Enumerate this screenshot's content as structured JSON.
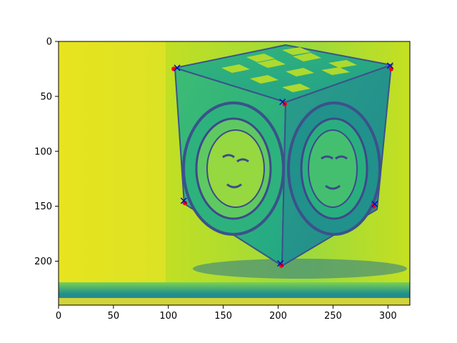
{
  "chart_data": {
    "type": "scatter",
    "title": "",
    "xlabel": "",
    "ylabel": "",
    "xlim": [
      0,
      320
    ],
    "ylim": [
      240,
      0
    ],
    "y_axis_inverted": true,
    "grid": false,
    "legend": "none",
    "x_ticks": [
      0,
      50,
      100,
      150,
      200,
      250,
      300
    ],
    "y_ticks": [
      0,
      50,
      100,
      150,
      200
    ],
    "background": {
      "kind": "grayscale image shown with viridis colormap",
      "subject": "photograph of a metal cube with sun-face reliefs and a checkerboard top",
      "colormap": "viridis"
    },
    "series": [
      {
        "marker": "dot",
        "color": "#ff0000",
        "x": [
          105,
          303,
          206,
          115,
          287,
          203
        ],
        "y": [
          25,
          25,
          57,
          147,
          150,
          204
        ]
      },
      {
        "marker": "x",
        "color": "#0000cc",
        "x": [
          108,
          302,
          204,
          114,
          288,
          202
        ],
        "y": [
          24,
          22,
          55,
          145,
          148,
          202
        ]
      }
    ]
  }
}
